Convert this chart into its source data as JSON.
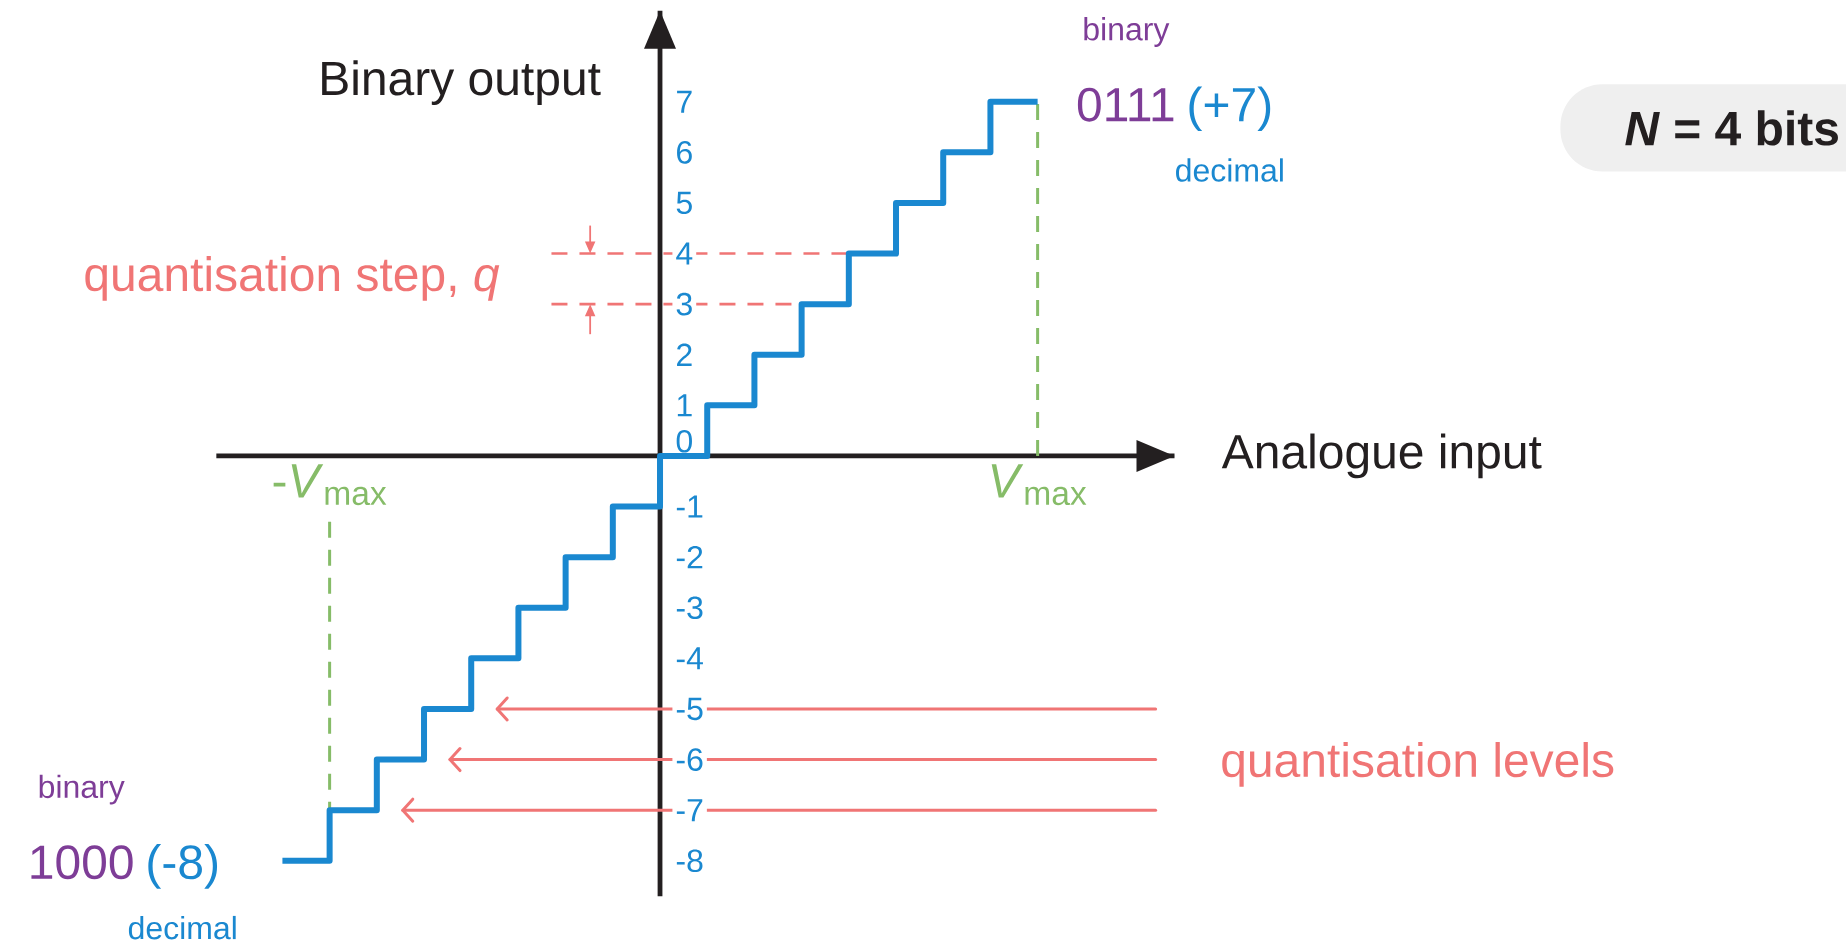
{
  "chart_data": {
    "type": "step",
    "xlabel": "Analogue input",
    "ylabel": "Binary output",
    "categories": [
      null,
      "-*V*$_{max}$",
      null,
      null,
      null,
      null,
      null,
      null,
      null,
      null,
      null,
      null,
      null,
      null,
      null,
      null,
      "*V*$_{max}$"
    ],
    "values": [
      -8,
      -7,
      -6,
      -5,
      -4,
      -3,
      -2,
      -1,
      0,
      1,
      2,
      3,
      4,
      5,
      6,
      7,
      7
    ],
    "color": "#1a88d0",
    "ylim": [
      -8.7,
      8.8
    ],
    "yticks": [
      -8,
      -7,
      -6,
      -5,
      -4,
      -3,
      -2,
      -1,
      0,
      1,
      2,
      3,
      4,
      5,
      6,
      7
    ],
    "ref_lines": [
      {
        "axis": "x",
        "value": "-*V*$_{max}$",
        "color": "#86bc68",
        "line_style": "dashed"
      },
      {
        "axis": "x",
        "value": "*V*$_{max}$",
        "color": "#86bc68",
        "line_style": "dashed"
      },
      {
        "axis": "y",
        "value": 4,
        "color": "#f07575",
        "line_style": "dashed"
      },
      {
        "axis": "y",
        "value": 3,
        "color": "#f07575",
        "line_style": "dashed"
      },
      {
        "axis": "y",
        "value": -5,
        "color": "#f07575",
        "line_style": "solid"
      },
      {
        "axis": "y",
        "value": -6,
        "color": "#f07575",
        "line_style": "solid",
        "label": "quantisation levels"
      },
      {
        "axis": "y",
        "value": -7,
        "color": "#f07575",
        "line_style": "solid"
      }
    ],
    "annotations": [
      {
        "text": "0111",
        "x": "*V*$_{max}$",
        "y": 7
      },
      "(+7)",
      "binary",
      "decimal",
      "(-8)",
      "1000",
      "binary",
      "decimal",
      "quantisation step,  *q*",
      "*N* = 4 bits"
    ]
  }
}
